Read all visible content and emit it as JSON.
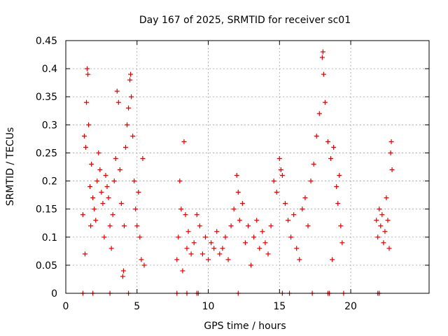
{
  "chart_data": {
    "type": "scatter",
    "title": "Day 167 of 2025, SRMTID for receiver sc01",
    "xlabel": "GPS time / hours",
    "ylabel": "SRMTID / TECUs",
    "xlim": [
      0,
      25.5
    ],
    "ylim": [
      0,
      0.45
    ],
    "xticks": [
      0,
      5,
      10,
      15,
      20
    ],
    "xtick_labels": [
      "0",
      "5",
      "10",
      "15",
      "20"
    ],
    "yticks": [
      0,
      0.05,
      0.1,
      0.15,
      0.2,
      0.25,
      0.3,
      0.35,
      0.4,
      0.45
    ],
    "ytick_labels": [
      "0",
      "0.05",
      "0.1",
      "0.15",
      "0.2",
      "0.25",
      "0.3",
      "0.35",
      "0.4",
      "0.45"
    ],
    "grid": true,
    "marker": "plus",
    "color": "#e00000",
    "series": [
      {
        "name": "SRMTID",
        "points": [
          [
            1.2,
            0.14
          ],
          [
            1.3,
            0.28
          ],
          [
            1.35,
            0.07
          ],
          [
            1.4,
            0.26
          ],
          [
            1.45,
            0.34
          ],
          [
            1.5,
            0.4
          ],
          [
            1.55,
            0.39
          ],
          [
            1.6,
            0.3
          ],
          [
            1.7,
            0.19
          ],
          [
            1.75,
            0.12
          ],
          [
            1.8,
            0.23
          ],
          [
            1.9,
            0.17
          ],
          [
            2.0,
            0.15
          ],
          [
            2.1,
            0.13
          ],
          [
            2.2,
            0.2
          ],
          [
            2.3,
            0.25
          ],
          [
            2.4,
            0.22
          ],
          [
            2.5,
            0.18
          ],
          [
            2.6,
            0.16
          ],
          [
            2.7,
            0.1
          ],
          [
            2.8,
            0.21
          ],
          [
            2.9,
            0.19
          ],
          [
            3.0,
            0.17
          ],
          [
            3.1,
            0.12
          ],
          [
            3.2,
            0.08
          ],
          [
            3.3,
            0.14
          ],
          [
            3.4,
            0.2
          ],
          [
            3.5,
            0.24
          ],
          [
            3.6,
            0.36
          ],
          [
            3.7,
            0.34
          ],
          [
            3.8,
            0.22
          ],
          [
            3.9,
            0.16
          ],
          [
            4.0,
            0.03
          ],
          [
            4.05,
            0.04
          ],
          [
            4.1,
            0.12
          ],
          [
            4.2,
            0.26
          ],
          [
            4.3,
            0.3
          ],
          [
            4.4,
            0.33
          ],
          [
            4.5,
            0.38
          ],
          [
            4.55,
            0.39
          ],
          [
            4.6,
            0.35
          ],
          [
            4.7,
            0.28
          ],
          [
            4.8,
            0.2
          ],
          [
            4.9,
            0.15
          ],
          [
            5.0,
            0.12
          ],
          [
            5.1,
            0.18
          ],
          [
            5.2,
            0.1
          ],
          [
            5.3,
            0.06
          ],
          [
            5.4,
            0.24
          ],
          [
            5.5,
            0.05
          ],
          [
            7.8,
            0.06
          ],
          [
            7.9,
            0.1
          ],
          [
            8.0,
            0.2
          ],
          [
            8.1,
            0.15
          ],
          [
            8.2,
            0.04
          ],
          [
            8.3,
            0.27
          ],
          [
            8.4,
            0.14
          ],
          [
            8.5,
            0.08
          ],
          [
            8.6,
            0.11
          ],
          [
            8.8,
            0.07
          ],
          [
            9.0,
            0.09
          ],
          [
            9.2,
            0.14
          ],
          [
            9.4,
            0.12
          ],
          [
            9.6,
            0.07
          ],
          [
            9.8,
            0.1
          ],
          [
            10.0,
            0.06
          ],
          [
            10.2,
            0.09
          ],
          [
            10.4,
            0.08
          ],
          [
            10.6,
            0.11
          ],
          [
            10.8,
            0.07
          ],
          [
            11.0,
            0.08
          ],
          [
            11.2,
            0.1
          ],
          [
            11.4,
            0.06
          ],
          [
            11.6,
            0.12
          ],
          [
            11.8,
            0.15
          ],
          [
            12.0,
            0.21
          ],
          [
            12.1,
            0.18
          ],
          [
            12.2,
            0.13
          ],
          [
            12.4,
            0.16
          ],
          [
            12.6,
            0.09
          ],
          [
            12.8,
            0.12
          ],
          [
            13.0,
            0.05
          ],
          [
            13.2,
            0.1
          ],
          [
            13.4,
            0.13
          ],
          [
            13.6,
            0.08
          ],
          [
            13.8,
            0.11
          ],
          [
            14.0,
            0.09
          ],
          [
            14.2,
            0.07
          ],
          [
            14.4,
            0.12
          ],
          [
            14.6,
            0.2
          ],
          [
            14.8,
            0.18
          ],
          [
            15.0,
            0.24
          ],
          [
            15.1,
            0.22
          ],
          [
            15.2,
            0.21
          ],
          [
            15.4,
            0.16
          ],
          [
            15.6,
            0.13
          ],
          [
            15.8,
            0.1
          ],
          [
            16.0,
            0.14
          ],
          [
            16.2,
            0.08
          ],
          [
            16.4,
            0.06
          ],
          [
            16.6,
            0.15
          ],
          [
            16.8,
            0.17
          ],
          [
            17.0,
            0.12
          ],
          [
            17.2,
            0.2
          ],
          [
            17.4,
            0.23
          ],
          [
            17.6,
            0.28
          ],
          [
            17.8,
            0.32
          ],
          [
            18.0,
            0.42
          ],
          [
            18.05,
            0.43
          ],
          [
            18.1,
            0.39
          ],
          [
            18.2,
            0.34
          ],
          [
            18.4,
            0.27
          ],
          [
            18.6,
            0.24
          ],
          [
            18.7,
            0.06
          ],
          [
            18.8,
            0.26
          ],
          [
            19.0,
            0.19
          ],
          [
            19.1,
            0.16
          ],
          [
            19.2,
            0.21
          ],
          [
            19.3,
            0.12
          ],
          [
            19.4,
            0.09
          ],
          [
            21.8,
            0.13
          ],
          [
            21.9,
            0.1
          ],
          [
            22.0,
            0.15
          ],
          [
            22.1,
            0.12
          ],
          [
            22.2,
            0.14
          ],
          [
            22.3,
            0.09
          ],
          [
            22.4,
            0.11
          ],
          [
            22.5,
            0.17
          ],
          [
            22.6,
            0.13
          ],
          [
            22.7,
            0.08
          ],
          [
            22.8,
            0.25
          ],
          [
            22.85,
            0.27
          ],
          [
            22.9,
            0.22
          ]
        ]
      }
    ],
    "zero_points_x": [
      1.2,
      1.9,
      3.1,
      4.4,
      7.8,
      8.5,
      9.2,
      9.3,
      12.1,
      15.2,
      15.7,
      17.3,
      18.4,
      18.5,
      19.5,
      21.9,
      22.0
    ]
  }
}
